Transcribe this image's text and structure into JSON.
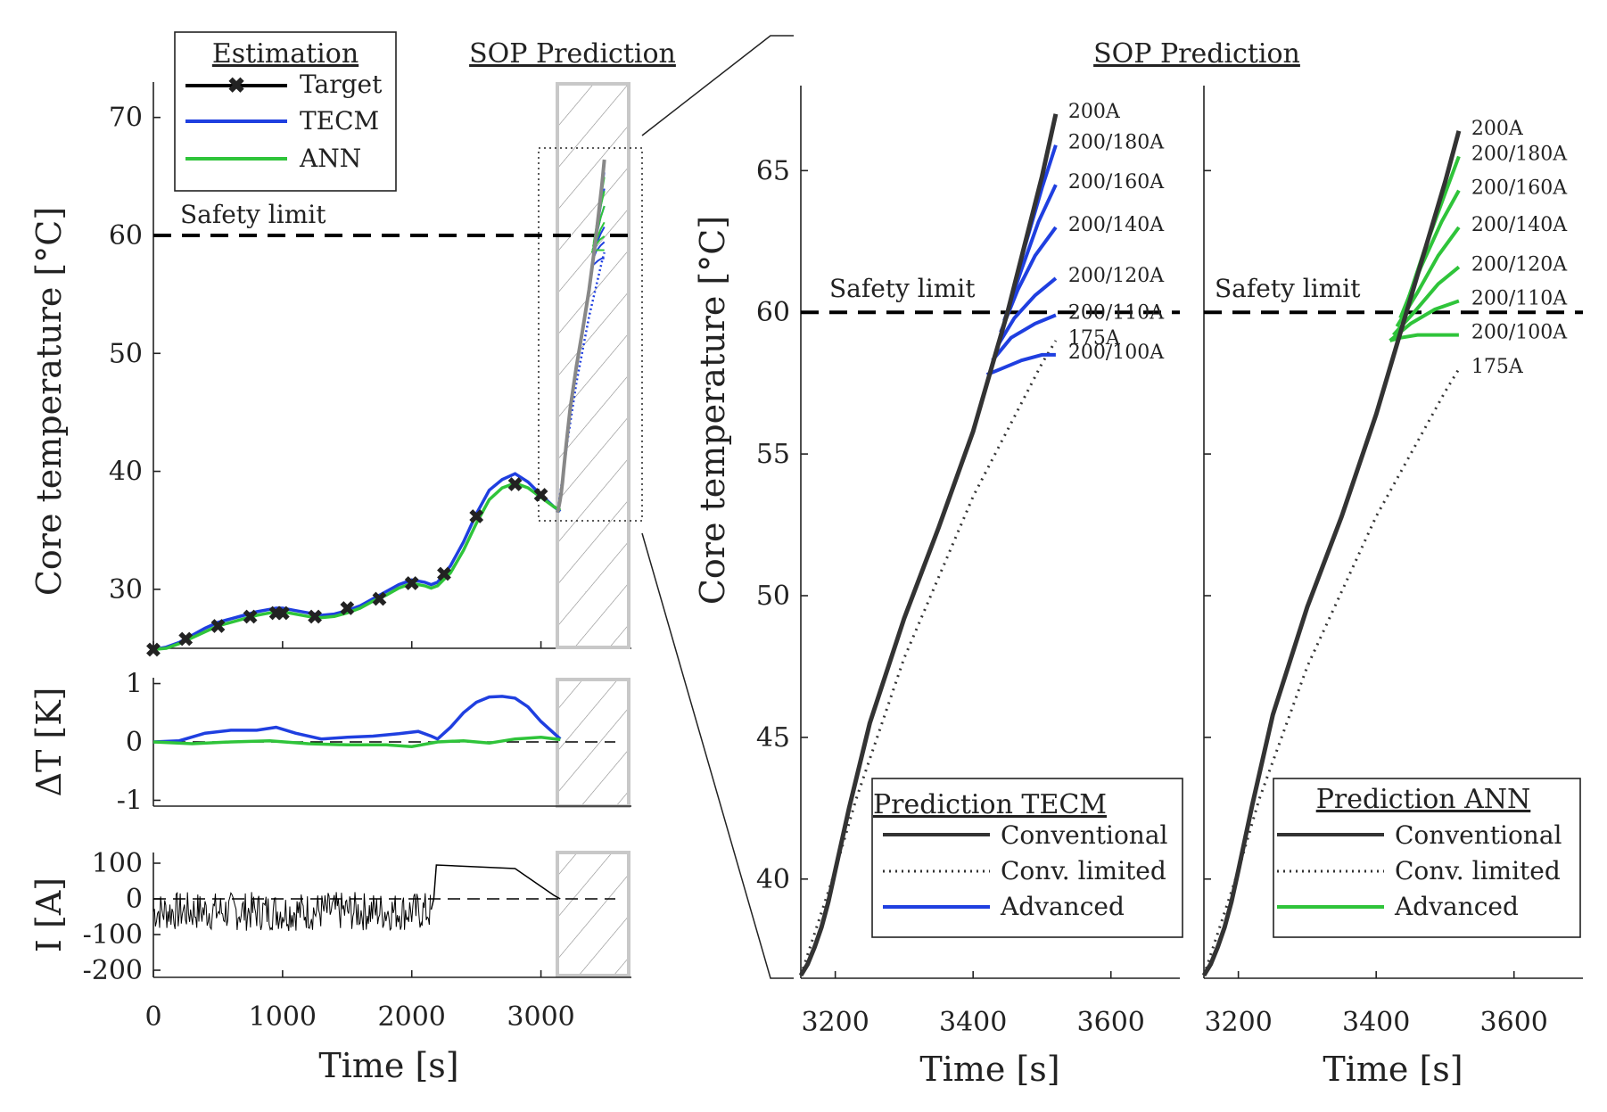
{
  "colors": {
    "target": "#000000",
    "tecm": "#1f3fe0",
    "ann": "#2fc43a",
    "conventional": "#333333",
    "limit": "#000000",
    "hatch": "#888888",
    "zoombox": "#bbbbbb"
  },
  "labels": {
    "left_title": "SOP Prediction",
    "right_title": "SOP Prediction",
    "safety_limit": "Safety limit",
    "ylabel_temp": "Core temperature [°C]",
    "ylabel_dT": "ΔT [K]",
    "ylabel_I": "I [A]",
    "xlabel": "Time [s]",
    "legend_estimation": {
      "title": "Estimation",
      "items": [
        "Target",
        "TECM",
        "ANN"
      ]
    },
    "legend_tecm": {
      "title": "Prediction TECM",
      "items": [
        "Conventional",
        "Conv. limited",
        "Advanced"
      ]
    },
    "legend_ann": {
      "title": "Prediction ANN",
      "items": [
        "Conventional",
        "Conv. limited",
        "Advanced"
      ]
    }
  },
  "chart_data": [
    {
      "id": "estimation_temp",
      "type": "line",
      "ylabel": "Core temperature [°C]",
      "xlim": [
        0,
        3700
      ],
      "ylim": [
        25,
        73
      ],
      "yticks": [
        30,
        40,
        50,
        60,
        70
      ],
      "xticks": [
        0,
        1000,
        2000,
        3000
      ],
      "safety_limit": 60,
      "series": [
        {
          "name": "Target",
          "x": [
            0,
            250,
            500,
            750,
            950,
            1000,
            1250,
            1500,
            1750,
            2000,
            2250,
            2500,
            2800,
            3000
          ],
          "y": [
            24.9,
            25.8,
            26.9,
            27.7,
            28.0,
            28.0,
            27.7,
            28.4,
            29.2,
            30.5,
            31.3,
            36.2,
            38.9,
            38.0
          ]
        },
        {
          "name": "TECM",
          "x": [
            0,
            100,
            200,
            300,
            400,
            500,
            600,
            700,
            800,
            900,
            950,
            1000,
            1100,
            1200,
            1300,
            1400,
            1500,
            1600,
            1700,
            1800,
            1900,
            2000,
            2100,
            2150,
            2200,
            2300,
            2400,
            2500,
            2600,
            2700,
            2800,
            2900,
            3000,
            3100,
            3150
          ],
          "y": [
            24.9,
            25.1,
            25.5,
            26.1,
            26.7,
            27.2,
            27.5,
            27.8,
            28.1,
            28.3,
            28.4,
            28.4,
            28.2,
            28.0,
            27.8,
            27.9,
            28.2,
            28.6,
            29.2,
            29.8,
            30.4,
            30.8,
            30.6,
            30.4,
            30.6,
            32.0,
            34.0,
            36.4,
            38.4,
            39.3,
            39.8,
            39.1,
            38.0,
            37.0,
            36.6
          ]
        },
        {
          "name": "ANN",
          "x": [
            0,
            100,
            200,
            300,
            400,
            500,
            600,
            700,
            800,
            900,
            950,
            1000,
            1100,
            1200,
            1300,
            1400,
            1500,
            1600,
            1700,
            1800,
            1900,
            2000,
            2100,
            2150,
            2200,
            2300,
            2400,
            2500,
            2600,
            2700,
            2800,
            2900,
            3000,
            3100,
            3150
          ],
          "y": [
            24.9,
            25.0,
            25.4,
            25.9,
            26.4,
            26.9,
            27.2,
            27.5,
            27.8,
            28.0,
            28.1,
            28.1,
            27.9,
            27.7,
            27.6,
            27.7,
            28.0,
            28.4,
            29.0,
            29.5,
            30.1,
            30.5,
            30.3,
            30.1,
            30.3,
            31.4,
            33.3,
            35.6,
            37.6,
            38.6,
            39.0,
            38.6,
            37.8,
            37.0,
            36.7
          ]
        }
      ]
    },
    {
      "id": "estimation_deltaT",
      "type": "line",
      "ylabel": "ΔT [K]",
      "xlim": [
        0,
        3700
      ],
      "ylim": [
        -1.1,
        1.1
      ],
      "yticks": [
        -1,
        0,
        1
      ],
      "series": [
        {
          "name": "TECM",
          "x": [
            0,
            200,
            400,
            600,
            800,
            950,
            1100,
            1300,
            1500,
            1700,
            1900,
            2050,
            2150,
            2200,
            2300,
            2400,
            2500,
            2600,
            2700,
            2800,
            2900,
            3000,
            3100,
            3150
          ],
          "y": [
            0,
            0.02,
            0.15,
            0.2,
            0.2,
            0.25,
            0.15,
            0.05,
            0.08,
            0.1,
            0.14,
            0.18,
            0.1,
            0.05,
            0.25,
            0.5,
            0.68,
            0.77,
            0.78,
            0.75,
            0.6,
            0.35,
            0.15,
            0.05
          ]
        },
        {
          "name": "ANN",
          "x": [
            0,
            300,
            600,
            900,
            1200,
            1500,
            1800,
            2000,
            2200,
            2400,
            2600,
            2800,
            3000,
            3150
          ],
          "y": [
            0,
            -0.03,
            0.0,
            0.02,
            -0.03,
            -0.05,
            -0.05,
            -0.08,
            0.0,
            0.02,
            -0.02,
            0.05,
            0.08,
            0.04
          ]
        }
      ]
    },
    {
      "id": "estimation_current",
      "type": "line",
      "ylabel": "I [A]",
      "xlim": [
        0,
        3700
      ],
      "ylim": [
        -220,
        130
      ],
      "yticks": [
        -200,
        -100,
        0,
        100
      ],
      "series": [
        {
          "name": "Current",
          "x": [
            0,
            200,
            400,
            600,
            800,
            1000,
            1200,
            1400,
            1600,
            1800,
            2000,
            2150,
            2170,
            2190,
            2800,
            2900,
            3000,
            3100,
            3150
          ],
          "y": [
            -30,
            -40,
            -20,
            -35,
            -15,
            -30,
            -25,
            -20,
            -35,
            -15,
            -40,
            -30,
            0,
            95,
            85,
            60,
            35,
            10,
            0
          ]
        }
      ]
    },
    {
      "id": "prediction_tecm",
      "type": "line",
      "xlabel": "Time [s]",
      "ylabel": "Core temperature [°C]",
      "xlim": [
        3150,
        3700
      ],
      "ylim": [
        36.5,
        68
      ],
      "xticks": [
        3200,
        3400,
        3600
      ],
      "yticks": [
        40,
        45,
        50,
        55,
        60,
        65
      ],
      "safety_limit": 60,
      "series": [
        {
          "name": "Conventional",
          "x": [
            3150,
            3160,
            3170,
            3180,
            3190,
            3200,
            3220,
            3250,
            3300,
            3350,
            3400,
            3450,
            3500,
            3520
          ],
          "y": [
            36.6,
            37.0,
            37.6,
            38.3,
            39.2,
            40.3,
            42.5,
            45.5,
            49.2,
            52.4,
            55.8,
            60.0,
            64.8,
            67.0
          ]
        },
        {
          "name": "Conv. limited",
          "x": [
            3150,
            3200,
            3230,
            3300,
            3400,
            3500,
            3520
          ],
          "y": [
            36.6,
            40.3,
            42.8,
            47.8,
            53.5,
            58.2,
            59.0
          ]
        },
        {
          "name": "200/180A",
          "x": [
            3450,
            3475,
            3500,
            3520
          ],
          "y": [
            60.0,
            62.3,
            64.4,
            65.9
          ]
        },
        {
          "name": "200/160A",
          "x": [
            3445,
            3470,
            3495,
            3520
          ],
          "y": [
            59.7,
            61.5,
            63.2,
            64.5
          ]
        },
        {
          "name": "200/140A",
          "x": [
            3440,
            3465,
            3490,
            3520
          ],
          "y": [
            59.3,
            60.8,
            62.0,
            63.0
          ]
        },
        {
          "name": "200/120A",
          "x": [
            3435,
            3460,
            3490,
            3520
          ],
          "y": [
            58.8,
            59.8,
            60.6,
            61.2
          ]
        },
        {
          "name": "200/110A",
          "x": [
            3428,
            3455,
            3490,
            3520
          ],
          "y": [
            58.3,
            59.1,
            59.6,
            59.9
          ]
        },
        {
          "name": "200/100A",
          "x": [
            3420,
            3440,
            3470,
            3500,
            3520
          ],
          "y": [
            57.8,
            58.0,
            58.3,
            58.5,
            58.5
          ]
        }
      ],
      "end_labels": [
        "200A",
        "200/180A",
        "200/160A",
        "200/140A",
        "200/120A",
        "200/110A",
        "175A",
        "200/100A"
      ]
    },
    {
      "id": "prediction_ann",
      "type": "line",
      "xlabel": "Time [s]",
      "xlim": [
        3150,
        3700
      ],
      "ylim": [
        36.5,
        68
      ],
      "xticks": [
        3200,
        3400,
        3600
      ],
      "safety_limit": 60,
      "series": [
        {
          "name": "Conventional",
          "x": [
            3150,
            3160,
            3170,
            3180,
            3190,
            3200,
            3220,
            3250,
            3300,
            3350,
            3400,
            3450,
            3500,
            3520
          ],
          "y": [
            36.6,
            37.0,
            37.6,
            38.3,
            39.2,
            40.3,
            42.6,
            45.8,
            49.6,
            52.8,
            56.4,
            60.5,
            64.6,
            66.4
          ]
        },
        {
          "name": "Conv. limited",
          "x": [
            3150,
            3200,
            3230,
            3300,
            3400,
            3500,
            3520
          ],
          "y": [
            36.6,
            40.3,
            42.8,
            47.5,
            52.8,
            57.2,
            58.0
          ]
        },
        {
          "name": "200/180A",
          "x": [
            3440,
            3470,
            3500,
            3520
          ],
          "y": [
            60.0,
            62.2,
            64.2,
            65.5
          ]
        },
        {
          "name": "200/160A",
          "x": [
            3435,
            3465,
            3495,
            3520
          ],
          "y": [
            59.8,
            61.6,
            63.2,
            64.3
          ]
        },
        {
          "name": "200/140A",
          "x": [
            3430,
            3460,
            3490,
            3520
          ],
          "y": [
            59.5,
            60.7,
            62.0,
            63.0
          ]
        },
        {
          "name": "200/120A",
          "x": [
            3425,
            3455,
            3490,
            3520
          ],
          "y": [
            59.2,
            60.0,
            61.0,
            61.6
          ]
        },
        {
          "name": "200/110A",
          "x": [
            3420,
            3450,
            3485,
            3520
          ],
          "y": [
            59.0,
            59.6,
            60.1,
            60.4
          ]
        },
        {
          "name": "200/100A",
          "x": [
            3420,
            3435,
            3460,
            3490,
            3520
          ],
          "y": [
            59.0,
            59.1,
            59.2,
            59.2,
            59.2
          ]
        }
      ],
      "end_labels": [
        "200A",
        "200/180A",
        "200/160A",
        "200/140A",
        "200/120A",
        "200/110A",
        "200/100A",
        "175A"
      ]
    }
  ]
}
